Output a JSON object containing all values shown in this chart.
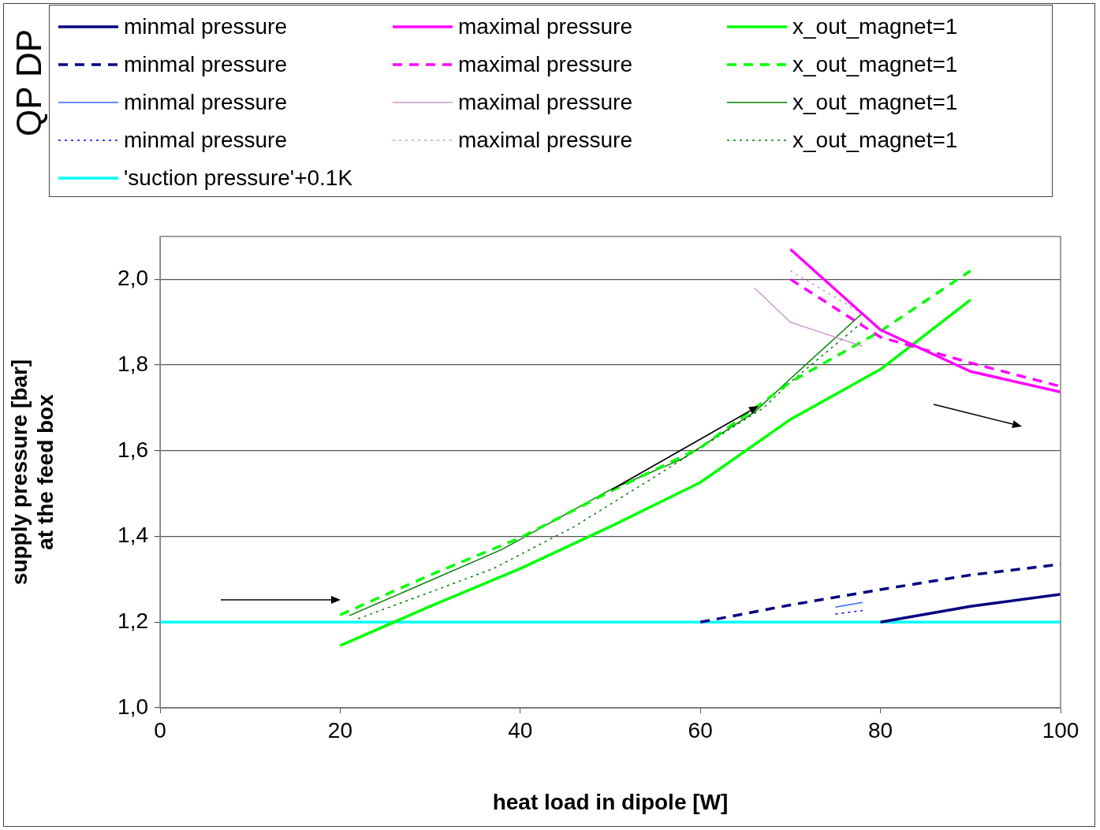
{
  "chart_data": {
    "type": "line",
    "legend_title": "QP DP",
    "xlabel": "heat load in dipole [W]",
    "ylabel": "supply pressure [bar]\nat the feed box",
    "xlim": [
      0,
      100
    ],
    "xticks": [
      0,
      20,
      40,
      60,
      80,
      100
    ],
    "ylim": [
      1,
      2.1
    ],
    "yticks": [
      {
        "value": 1,
        "label": "1,0"
      },
      {
        "value": 1.2,
        "label": "1,2"
      },
      {
        "value": 1.4,
        "label": "1,4"
      },
      {
        "value": 1.6,
        "label": "1,6"
      },
      {
        "value": 1.8,
        "label": "1,8"
      },
      {
        "value": 2,
        "label": "2,0"
      }
    ],
    "grid": "y",
    "legend": "top",
    "marker": "none",
    "series": [
      {
        "name": "minmal pressure",
        "color": "#000080",
        "line_style": "solid",
        "x": [
          80,
          90,
          100
        ],
        "values": [
          1.2,
          1.237,
          1.265
        ]
      },
      {
        "name": "minmal pressure",
        "color": "#000080",
        "line_style": "dashed",
        "x": [
          60,
          70,
          80,
          90,
          100
        ],
        "values": [
          1.2,
          1.24,
          1.276,
          1.31,
          1.335
        ]
      },
      {
        "name": "minmal pressure",
        "color": "#3366ff",
        "line_style": "solid",
        "x": [
          75,
          78
        ],
        "values": [
          1.235,
          1.246
        ]
      },
      {
        "name": "minmal pressure",
        "color": "#0000ff",
        "line_style": "dotted",
        "x": [
          75,
          78
        ],
        "values": [
          1.219,
          1.227
        ]
      },
      {
        "name": "maximal pressure",
        "color": "#ff00ff",
        "line_style": "solid",
        "x": [
          70,
          80,
          90,
          100
        ],
        "values": [
          2.07,
          1.882,
          1.785,
          1.737
        ]
      },
      {
        "name": "maximal pressure",
        "color": "#ff00ff",
        "line_style": "dashed",
        "x": [
          70,
          80,
          90,
          100
        ],
        "values": [
          2.0,
          1.865,
          1.805,
          1.75
        ]
      },
      {
        "name": "maximal pressure",
        "color": "#cc99cc",
        "line_style": "solid",
        "x": [
          66,
          70,
          78
        ],
        "values": [
          1.98,
          1.9,
          1.844
        ]
      },
      {
        "name": "maximal pressure",
        "color": "#cc99cc",
        "line_style": "dotted",
        "x": [
          70,
          78
        ],
        "values": [
          2.02,
          1.92
        ]
      },
      {
        "name": "x_out_magnet=1",
        "color": "#00ff00",
        "line_style": "solid",
        "x": [
          20,
          30,
          40,
          50,
          60,
          70,
          80,
          90
        ],
        "values": [
          1.145,
          1.237,
          1.325,
          1.423,
          1.526,
          1.673,
          1.79,
          1.952
        ]
      },
      {
        "name": "x_out_magnet=1",
        "color": "#00ff00",
        "line_style": "dashed",
        "x": [
          20,
          30,
          40,
          50,
          60,
          70,
          80,
          90
        ],
        "values": [
          1.217,
          1.31,
          1.397,
          1.505,
          1.607,
          1.76,
          1.879,
          2.02
        ]
      },
      {
        "name": "x_out_magnet=1",
        "color": "#008000",
        "line_style": "solid",
        "x": [
          21,
          38,
          46,
          50,
          58,
          66,
          70,
          78
        ],
        "values": [
          1.215,
          1.37,
          1.463,
          1.509,
          1.581,
          1.69,
          1.768,
          1.921
        ]
      },
      {
        "name": "x_out_magnet=1",
        "color": "#008000",
        "line_style": "dotted",
        "x": [
          22,
          30,
          37,
          46,
          55,
          67,
          70,
          78
        ],
        "values": [
          1.208,
          1.27,
          1.325,
          1.423,
          1.54,
          1.7,
          1.76,
          1.9
        ]
      },
      {
        "name": "'suction pressure'+0.1K",
        "color": "#00ffff",
        "line_style": "solid",
        "x": [
          0,
          100
        ],
        "values": [
          1.2,
          1.2
        ]
      }
    ]
  }
}
